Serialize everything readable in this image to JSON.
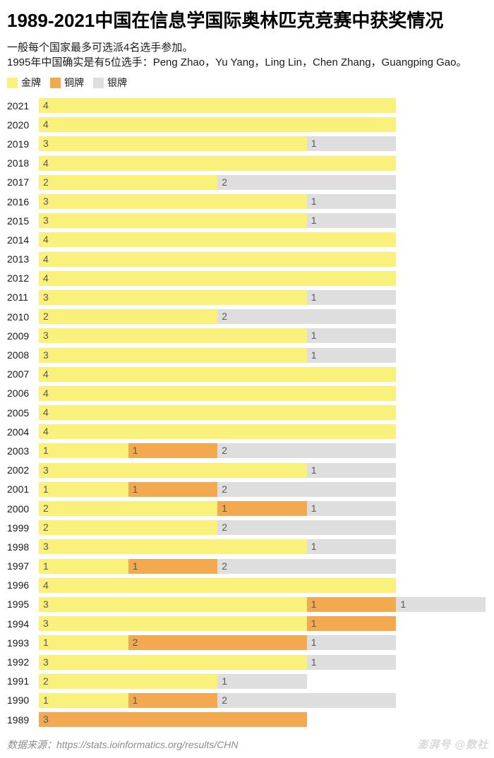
{
  "header": {
    "title": "1989-2021中国在信息学国际奥林匹克竞赛中获奖情况",
    "subtitle_line1": "一般每个国家最多可选派4名选手参加。",
    "subtitle_line2": "1995年中国确实是有5位选手：Peng Zhao，Yu Yang，Ling Lin，Chen Zhang，Guangping Gao。"
  },
  "legend": [
    {
      "key": "gold",
      "label": "金牌",
      "color": "#FAF17C"
    },
    {
      "key": "bronze",
      "label": "铜牌",
      "color": "#F2A950"
    },
    {
      "key": "silver",
      "label": "银牌",
      "color": "#DEDEDE"
    }
  ],
  "chart_data": {
    "type": "bar",
    "orientation": "horizontal",
    "stacked": true,
    "title": "1989-2021中国在信息学国际奥林匹克竞赛中获奖情况",
    "xlabel": "",
    "ylabel": "",
    "xlim": [
      0,
      5
    ],
    "grid": false,
    "legend_position": "top-left",
    "value_labels": "inside-segment-start",
    "categories": [
      2021,
      2020,
      2019,
      2018,
      2017,
      2016,
      2015,
      2014,
      2013,
      2012,
      2011,
      2010,
      2009,
      2008,
      2007,
      2006,
      2005,
      2004,
      2003,
      2002,
      2001,
      2000,
      1999,
      1998,
      1997,
      1996,
      1995,
      1994,
      1993,
      1992,
      1991,
      1990,
      1989
    ],
    "series": [
      {
        "name": "金牌",
        "key": "gold",
        "color": "#FAF17C",
        "values": [
          4,
          4,
          3,
          4,
          2,
          3,
          3,
          4,
          4,
          4,
          3,
          2,
          3,
          3,
          4,
          4,
          4,
          4,
          1,
          3,
          1,
          2,
          2,
          3,
          1,
          4,
          3,
          3,
          1,
          3,
          2,
          1,
          0
        ]
      },
      {
        "name": "铜牌",
        "key": "bronze",
        "color": "#F2A950",
        "values": [
          0,
          0,
          0,
          0,
          0,
          0,
          0,
          0,
          0,
          0,
          0,
          0,
          0,
          0,
          0,
          0,
          0,
          0,
          1,
          0,
          1,
          1,
          0,
          0,
          1,
          0,
          1,
          1,
          2,
          0,
          0,
          1,
          3
        ]
      },
      {
        "name": "银牌",
        "key": "silver",
        "color": "#DEDEDE",
        "values": [
          0,
          0,
          1,
          0,
          2,
          1,
          1,
          0,
          0,
          0,
          1,
          2,
          1,
          1,
          0,
          0,
          0,
          0,
          2,
          1,
          2,
          1,
          2,
          1,
          2,
          0,
          1,
          0,
          1,
          1,
          1,
          2,
          0
        ]
      }
    ]
  },
  "footer": {
    "source": "数据来源：https://stats.ioinformatics.org/results/CHN",
    "watermark": "澎湃号 @数社"
  }
}
